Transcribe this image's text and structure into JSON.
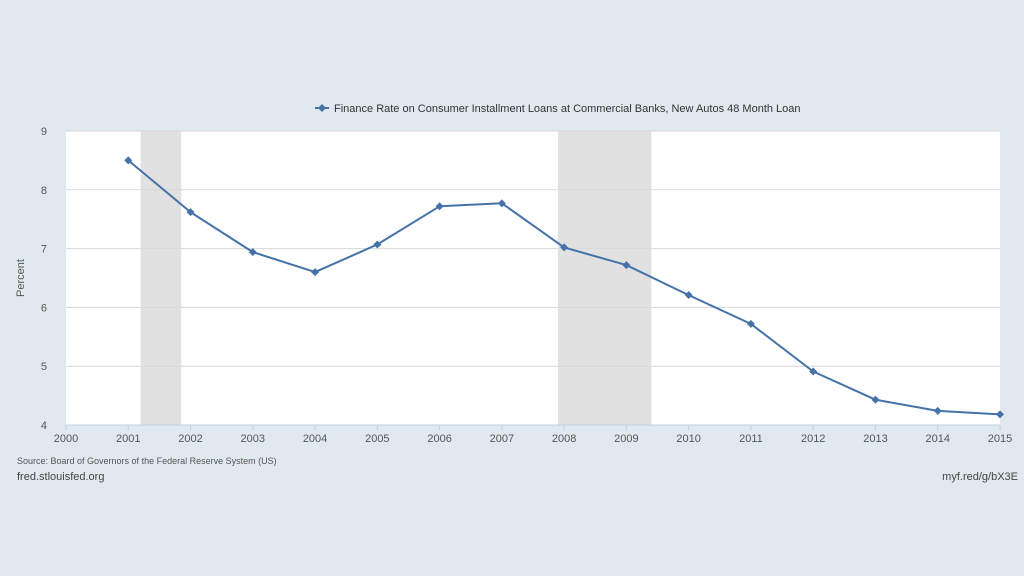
{
  "chart_data": {
    "type": "line",
    "title": "",
    "xlabel": "",
    "ylabel": "Percent",
    "xlim": [
      2000,
      2015
    ],
    "ylim": [
      4,
      9
    ],
    "x_ticks": [
      "2000",
      "2001",
      "2002",
      "2003",
      "2004",
      "2005",
      "2006",
      "2007",
      "2008",
      "2009",
      "2010",
      "2011",
      "2012",
      "2013",
      "2014",
      "2015"
    ],
    "y_ticks": [
      "4",
      "5",
      "6",
      "7",
      "8",
      "9"
    ],
    "grid": true,
    "legend_position": "top-center",
    "series": [
      {
        "name": "Finance Rate on Consumer Installment Loans at Commercial Banks, New Autos 48 Month Loan",
        "color": "#4572a7",
        "marker": "diamond",
        "x": [
          2001,
          2002,
          2003,
          2004,
          2005,
          2006,
          2007,
          2008,
          2009,
          2010,
          2011,
          2012,
          2013,
          2014,
          2015
        ],
        "y": [
          8.5,
          7.62,
          6.94,
          6.6,
          7.07,
          7.72,
          7.77,
          7.02,
          6.72,
          6.21,
          5.72,
          4.91,
          4.43,
          4.24,
          4.18
        ]
      }
    ],
    "recessions": [
      {
        "start": 2001.2,
        "end": 2001.85
      },
      {
        "start": 2007.9,
        "end": 2009.4
      }
    ]
  },
  "footer": {
    "source": "Source: Board of Governors of the Federal Reserve System (US)",
    "site": "fred.stlouisfed.org",
    "short_link": "myf.red/g/bX3E"
  }
}
